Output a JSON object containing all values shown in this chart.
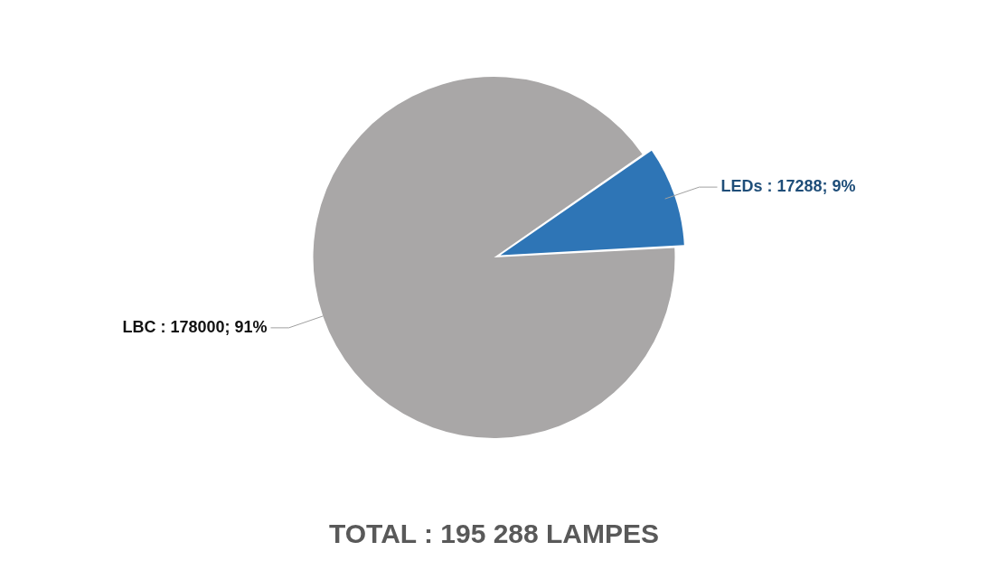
{
  "chart_data": {
    "type": "pie",
    "title": "TOTAL : 195 288 LAMPES",
    "categories": [
      "LBC",
      "LEDs"
    ],
    "values": [
      178000,
      17288
    ],
    "colors": [
      "#a9a7a7",
      "#2e75b6"
    ],
    "value_labels": [
      "178000; 91%",
      "17288; 9%"
    ],
    "legend": false
  }
}
